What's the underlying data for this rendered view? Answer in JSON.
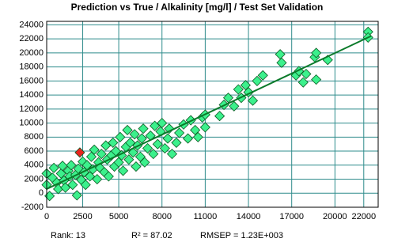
{
  "chart_data": {
    "type": "scatter",
    "title": "Prediction vs True  /  Alkalinity [mg/l]  /  Test Set Validation",
    "xlim": [
      0,
      23000
    ],
    "ylim": [
      -2000,
      24500
    ],
    "xticks": [
      0,
      2500,
      5000,
      8000,
      11000,
      14000,
      17000,
      20000,
      22000
    ],
    "yticks": [
      -2000,
      0,
      2000,
      4000,
      6000,
      8000,
      10000,
      12000,
      14000,
      16000,
      18000,
      20000,
      22000,
      24000
    ],
    "grid": true,
    "series": [
      {
        "color": "#3cf08c",
        "x": [
          0,
          0,
          200,
          400,
          500,
          700,
          800,
          1000,
          1100,
          1200,
          1300,
          1500,
          1600,
          1700,
          1800,
          2000,
          2100,
          2200,
          2400,
          2500,
          2600,
          2700,
          2800,
          3000,
          3100,
          3200,
          3300,
          3500,
          3600,
          3700,
          3800,
          4000,
          4100,
          4200,
          4300,
          4500,
          4600,
          4700,
          4800,
          5000,
          5100,
          5200,
          5300,
          5500,
          5600,
          5700,
          5800,
          6000,
          6100,
          6200,
          6300,
          6500,
          6600,
          6700,
          6800,
          7000,
          7200,
          7400,
          7500,
          7700,
          7900,
          8000,
          8200,
          8400,
          8500,
          8700,
          9000,
          9200,
          9500,
          9800,
          10000,
          10300,
          10500,
          10800,
          11000,
          11000,
          12000,
          12300,
          12600,
          13000,
          13300,
          13500,
          13800,
          14000,
          14300,
          14600,
          15000,
          16200,
          16300,
          17300,
          17500,
          17800,
          18000,
          18600,
          18700,
          18700,
          19500,
          22300,
          22300
        ],
        "y": [
          1200,
          2800,
          -400,
          2200,
          3600,
          1500,
          600,
          2800,
          3900,
          1800,
          800,
          3200,
          2400,
          4000,
          1200,
          2600,
          -300,
          3500,
          1900,
          4500,
          3000,
          1200,
          4000,
          2400,
          5200,
          3400,
          6200,
          2000,
          4400,
          3600,
          5600,
          3000,
          6800,
          4800,
          2400,
          5400,
          7200,
          3800,
          6000,
          4400,
          8000,
          5400,
          3200,
          6600,
          9000,
          4800,
          7200,
          5800,
          8400,
          3800,
          6800,
          5200,
          7800,
          9200,
          4400,
          6400,
          8200,
          5600,
          9600,
          7000,
          8800,
          10000,
          6400,
          7800,
          9200,
          5600,
          7200,
          8600,
          9800,
          7800,
          10400,
          9000,
          8000,
          10800,
          11200,
          9400,
          11000,
          12600,
          13600,
          12400,
          14800,
          13600,
          15400,
          14400,
          13200,
          16000,
          16800,
          19800,
          18600,
          16800,
          17400,
          15800,
          17000,
          19400,
          20000,
          16200,
          19000,
          23000,
          22200
        ]
      },
      {
        "color": "#e8231e",
        "x": [
          2300
        ],
        "y": [
          5800
        ]
      }
    ],
    "fit_line": {
      "color": "#0b7a2a",
      "x": [
        0,
        22500
      ],
      "y": [
        600,
        22400
      ]
    },
    "footer": {
      "rank": "Rank: 13",
      "r2": "R² = 87.02",
      "rmsep": "RMSEP = 1.23E+003"
    }
  }
}
